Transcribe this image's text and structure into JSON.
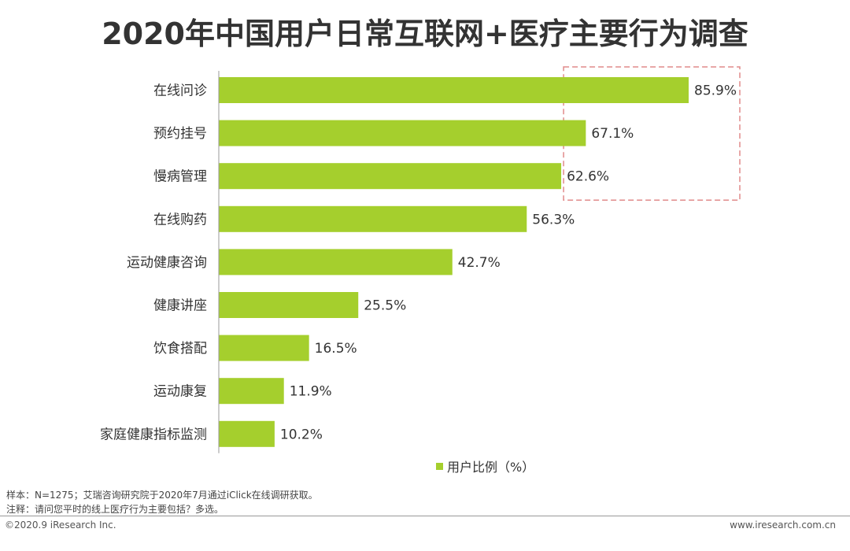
{
  "chart_data": {
    "type": "bar",
    "orientation": "horizontal",
    "title": "2020年中国用户日常互联网+医疗主要行为调查",
    "categories": [
      "在线问诊",
      "预约挂号",
      "慢病管理",
      "在线购药",
      "运动健康咨询",
      "健康讲座",
      "饮食搭配",
      "运动康复",
      "家庭健康指标监测"
    ],
    "values": [
      85.9,
      67.1,
      62.6,
      56.3,
      42.7,
      25.5,
      16.5,
      11.9,
      10.2
    ],
    "value_labels": [
      "85.9%",
      "67.1%",
      "62.6%",
      "56.3%",
      "42.7%",
      "25.5%",
      "16.5%",
      "11.9%",
      "10.2%"
    ],
    "series_name": "用户比例（%）",
    "xlim": [
      0,
      100
    ],
    "grid": false,
    "legend_position": "bottom",
    "highlighted_categories": [
      "在线问诊",
      "预约挂号",
      "慢病管理"
    ]
  },
  "colors": {
    "bar": "#a5cf2d",
    "highlight_box": "#e08a8a",
    "title": "#333333",
    "axis": "#999999"
  },
  "notes": {
    "sample": "样本：N=1275；艾瑞咨询研究院于2020年7月通过iClick在线调研获取。",
    "remark": "注释：请问您平时的线上医疗行为主要包括？多选。"
  },
  "footer": {
    "copyright": "©2020.9 iResearch Inc.",
    "website": "www.iresearch.com.cn"
  }
}
